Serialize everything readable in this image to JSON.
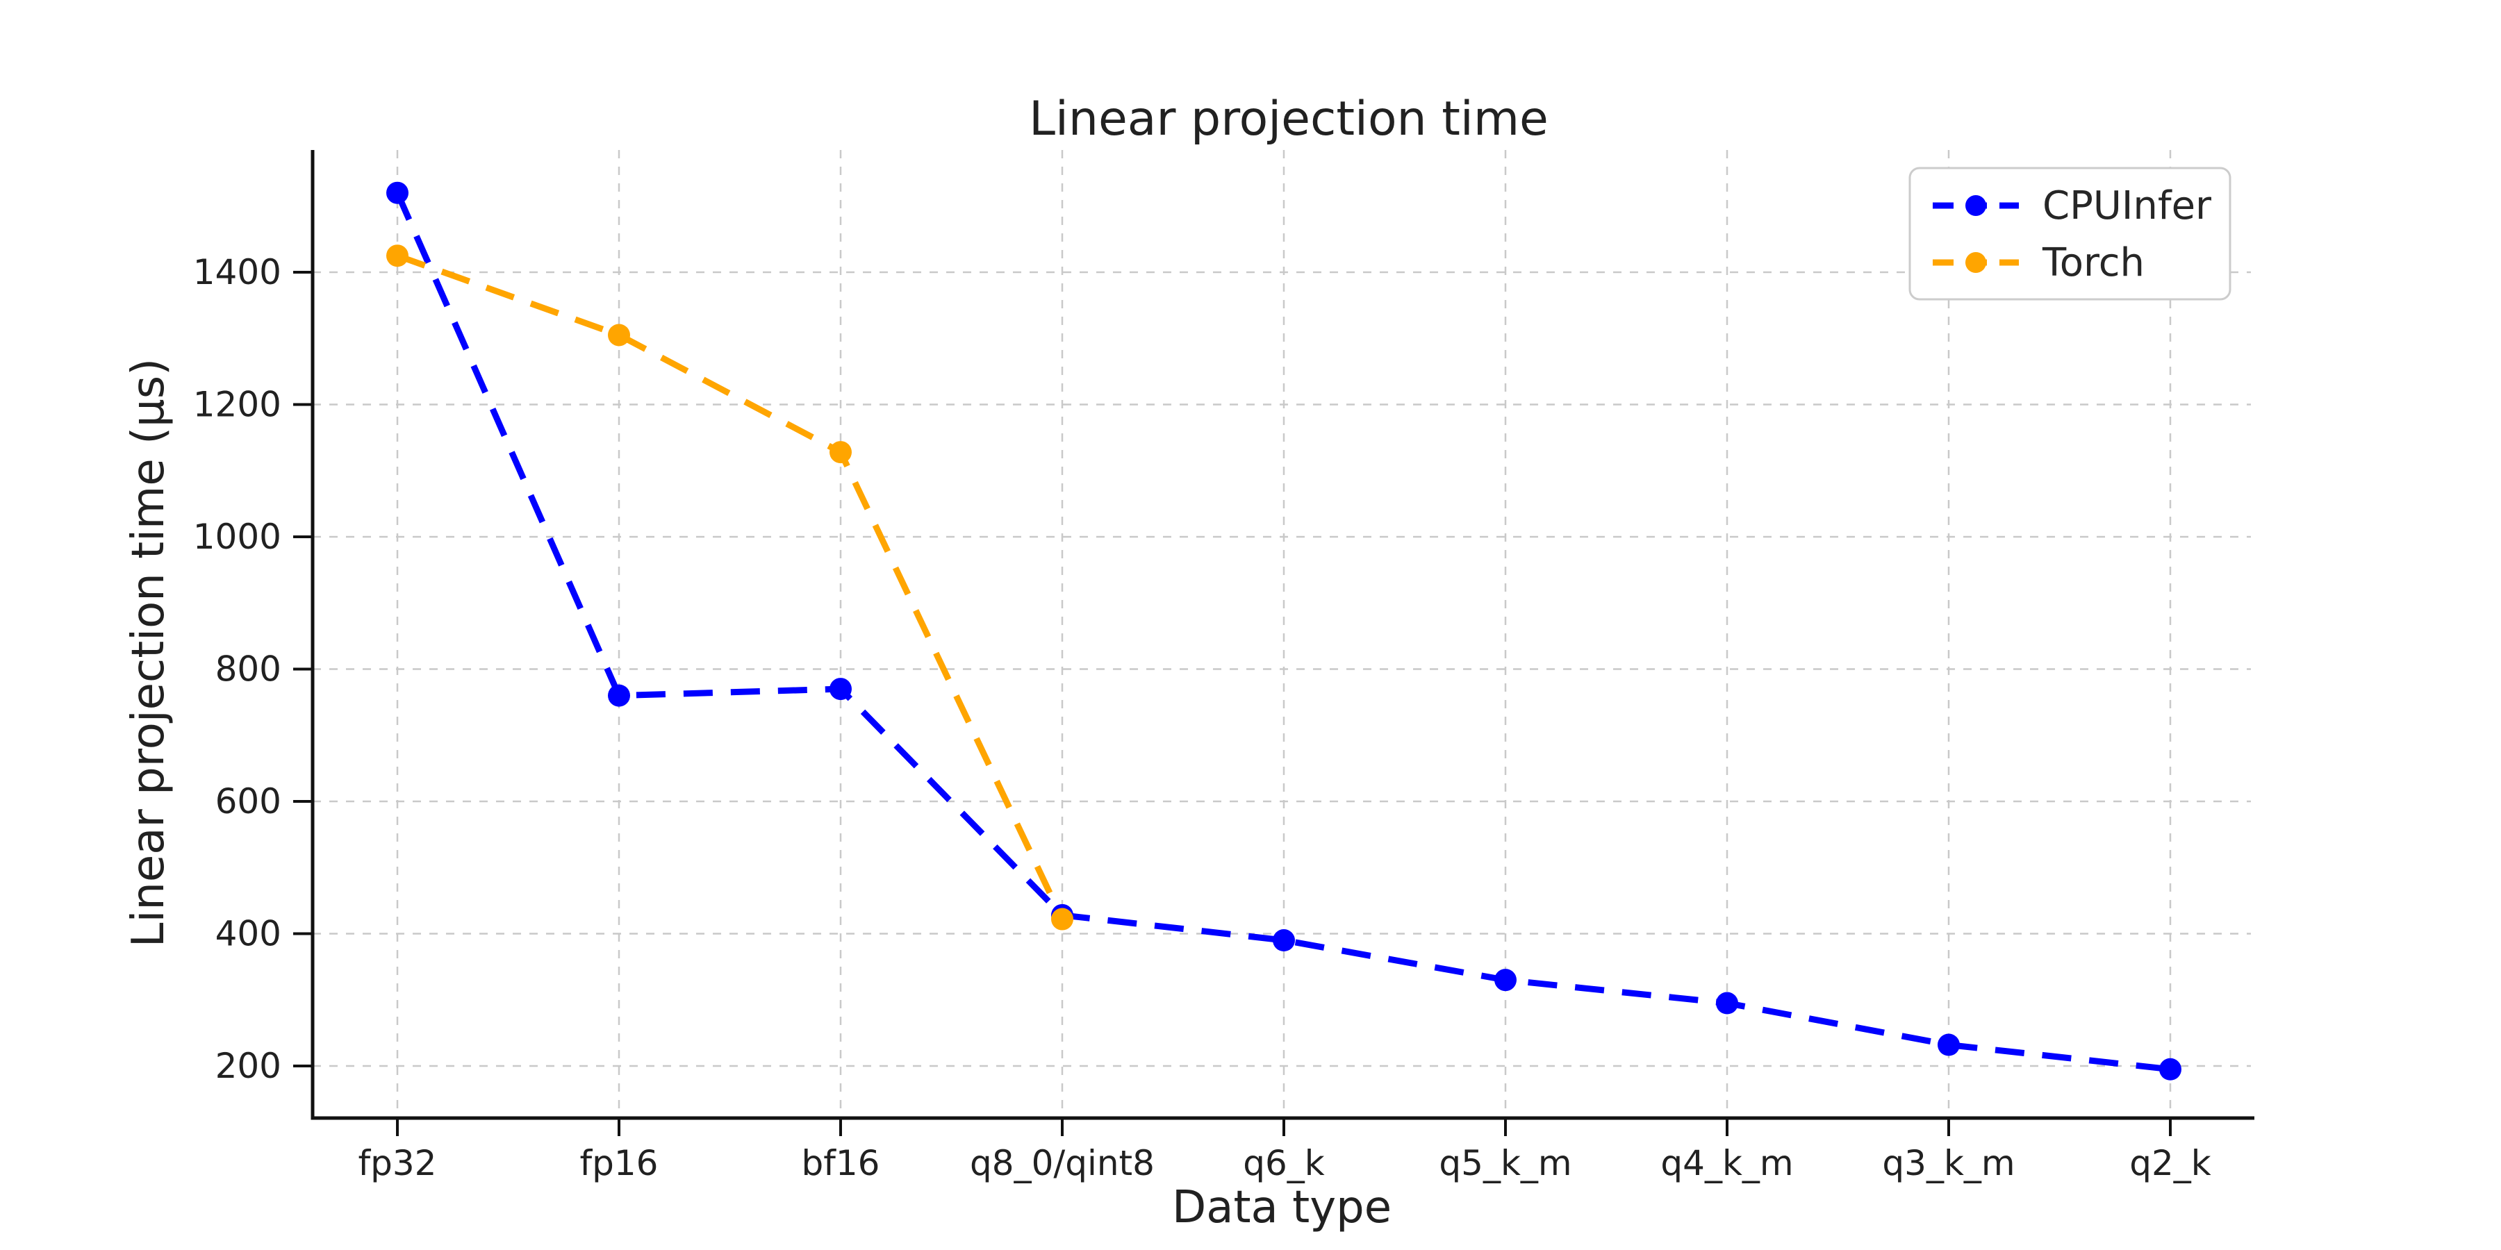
{
  "chart_data": {
    "type": "line",
    "title": "Linear projection time",
    "xlabel": "Data type",
    "ylabel": "Linear projection time (µs)",
    "categories": [
      "fp32",
      "fp16",
      "bf16",
      "q8_0/qint8",
      "q6_k",
      "q5_k_m",
      "q4_k_m",
      "q3_k_m",
      "q2_k"
    ],
    "series": [
      {
        "name": "CPUInfer",
        "color": "#0000ff",
        "values": [
          1520,
          760,
          770,
          428,
          390,
          330,
          295,
          232,
          195
        ]
      },
      {
        "name": "Torch",
        "color": "#ffa500",
        "values": [
          1425,
          1305,
          1128,
          422
        ]
      }
    ],
    "yticks": [
      200,
      400,
      600,
      800,
      1000,
      1200,
      1400
    ],
    "ylim": [
      115,
      1590
    ],
    "grid": true,
    "grid_style": "dashed",
    "line_style": "dashed",
    "marker": "circle",
    "legend_position": "upper right",
    "colors": {
      "background": "#ffffff",
      "grid": "#c9c9c9",
      "axis": "#111111",
      "text": "#212121",
      "legend_border": "#cccccc"
    }
  }
}
